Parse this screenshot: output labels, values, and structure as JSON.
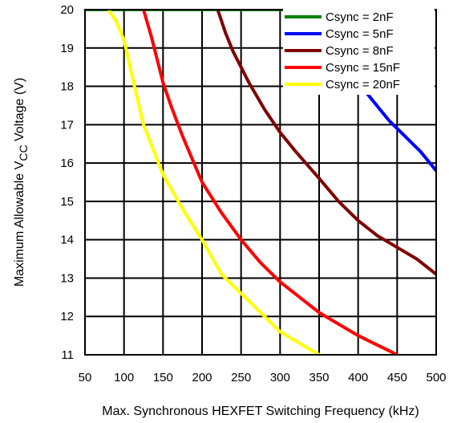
{
  "chart_data": {
    "type": "line",
    "title": "",
    "xlabel": "Max. Synchronous HEXFET Switching Frequency (kHz)",
    "ylabel": {
      "prefix": "Maximum Allowable V",
      "subscript": "CC",
      "suffix": " Voltage (V)"
    },
    "xlim": [
      50,
      500
    ],
    "ylim": [
      11,
      20
    ],
    "xticks": [
      50,
      100,
      150,
      200,
      250,
      300,
      350,
      400,
      450,
      500
    ],
    "yticks": [
      11,
      12,
      13,
      14,
      15,
      16,
      17,
      18,
      19,
      20
    ],
    "grid": true,
    "legend_position": "top-right",
    "series": [
      {
        "name": "Csync = 2nF",
        "color": "#008000",
        "x": [
          50,
          500
        ],
        "y": [
          20,
          20
        ]
      },
      {
        "name": "Csync = 5nF",
        "color": "#0000ff",
        "x": [
          330,
          350,
          380,
          400,
          420,
          440,
          460,
          480,
          500
        ],
        "y": [
          20,
          19.5,
          18.6,
          18.1,
          17.6,
          17.1,
          16.7,
          16.3,
          15.8
        ]
      },
      {
        "name": "Csync = 8nF",
        "color": "#800000",
        "x": [
          220,
          230,
          240,
          250,
          260,
          280,
          300,
          320,
          350,
          375,
          400,
          425,
          450,
          475,
          500
        ],
        "y": [
          20,
          19.4,
          18.9,
          18.5,
          18.1,
          17.4,
          16.8,
          16.3,
          15.6,
          15.0,
          14.5,
          14.1,
          13.8,
          13.5,
          13.1
        ]
      },
      {
        "name": "Csync = 15nF",
        "color": "#ff0000",
        "x": [
          125,
          135,
          150,
          160,
          175,
          200,
          225,
          250,
          275,
          300,
          325,
          350,
          375,
          400,
          420,
          440,
          450
        ],
        "y": [
          20,
          19.3,
          18.1,
          17.5,
          16.7,
          15.5,
          14.7,
          14.0,
          13.4,
          12.9,
          12.5,
          12.1,
          11.8,
          11.5,
          11.3,
          11.1,
          11.0
        ]
      },
      {
        "name": "Csync = 20nF",
        "color": "#ffff00",
        "x": [
          80,
          90,
          100,
          110,
          125,
          150,
          175,
          200,
          225,
          250,
          275,
          300,
          325,
          350
        ],
        "y": [
          20,
          19.7,
          19.2,
          18.3,
          17.0,
          15.7,
          14.8,
          14.0,
          13.1,
          12.6,
          12.1,
          11.6,
          11.3,
          11.0
        ]
      }
    ]
  }
}
